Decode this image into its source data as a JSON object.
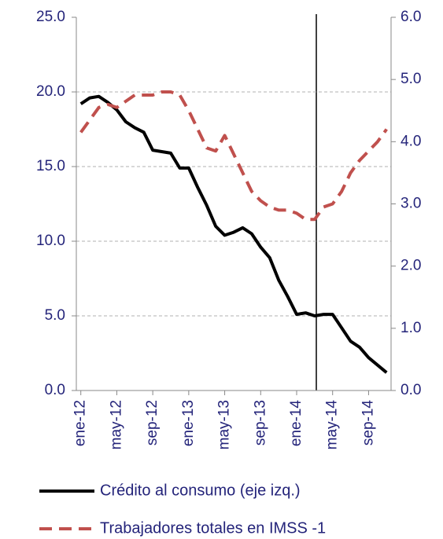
{
  "chart_data": {
    "type": "line",
    "categories": [
      "ene-12",
      null,
      null,
      null,
      "may-12",
      null,
      null,
      null,
      "sep-12",
      null,
      null,
      null,
      "ene-13",
      null,
      null,
      null,
      "may-13",
      null,
      null,
      null,
      "sep-13",
      null,
      null,
      null,
      "ene-14",
      null,
      null,
      null,
      "may-14",
      null,
      null,
      null,
      "sep-14",
      null,
      null
    ],
    "series": [
      {
        "name": "Crédito al consumo (eje izq.)",
        "color": "#000000",
        "dash": false,
        "values": [
          19.2,
          19.6,
          19.7,
          19.3,
          18.8,
          18.0,
          17.6,
          17.3,
          16.1,
          16.0,
          15.9,
          14.9,
          14.9,
          13.6,
          12.4,
          11.0,
          10.4,
          10.6,
          10.9,
          10.5,
          9.6,
          8.9,
          7.4,
          6.3,
          5.1,
          5.2,
          5.0,
          5.1,
          5.1,
          4.2,
          3.3,
          2.9,
          2.2,
          1.7,
          1.2
        ]
      },
      {
        "name": "Trabajadores totales en IMSS -1",
        "color": "#c0504d",
        "dash": true,
        "axis": "y2",
        "values": [
          4.15,
          4.35,
          4.55,
          4.6,
          4.55,
          4.65,
          4.75,
          4.75,
          4.75,
          4.8,
          4.8,
          4.75,
          4.5,
          4.2,
          3.9,
          3.85,
          4.1,
          3.8,
          3.5,
          3.2,
          3.05,
          2.95,
          2.9,
          2.9,
          2.85,
          2.75,
          2.75,
          2.95,
          3.0,
          3.2,
          3.5,
          3.7,
          3.85,
          4.0,
          4.2
        ]
      }
    ],
    "ylim": [
      0,
      25
    ],
    "yticks": [
      {
        "value": 0,
        "label": "0.0"
      },
      {
        "value": 5,
        "label": "5.0"
      },
      {
        "value": 10,
        "label": "10.0"
      },
      {
        "value": 15,
        "label": "15.0"
      },
      {
        "value": 20,
        "label": "20.0"
      },
      {
        "value": 25,
        "label": "25.0"
      }
    ],
    "y2lim": [
      0,
      6
    ],
    "y2ticks": [
      {
        "value": 0,
        "label": "0.0"
      },
      {
        "value": 1,
        "label": "1.0"
      },
      {
        "value": 2,
        "label": "2.0"
      },
      {
        "value": 3,
        "label": "3.0"
      },
      {
        "value": 4,
        "label": "4.0"
      },
      {
        "value": 5,
        "label": "5.0"
      },
      {
        "value": 6,
        "label": "6.0"
      }
    ],
    "grid": true
  }
}
